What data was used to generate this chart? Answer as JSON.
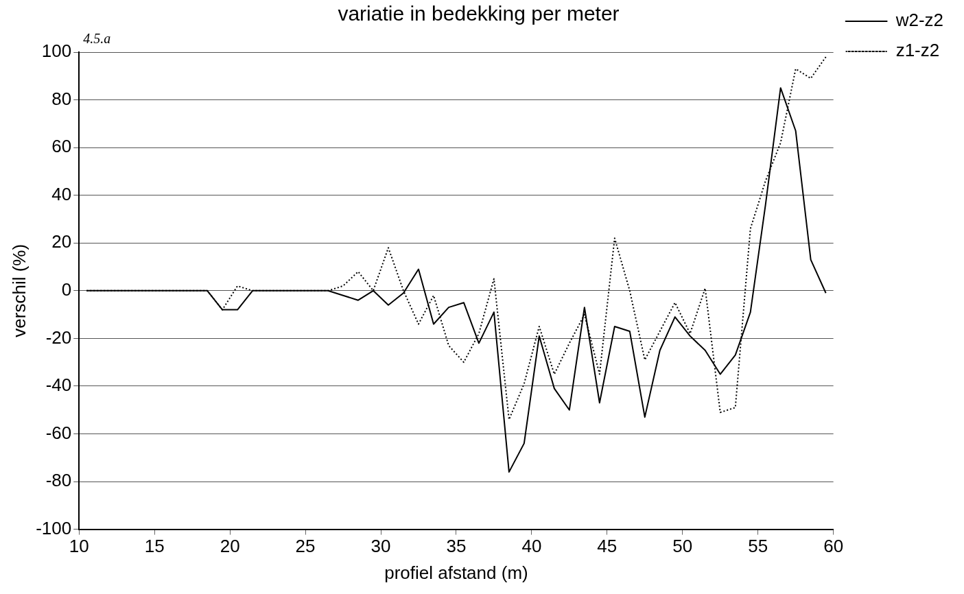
{
  "chart_data": {
    "type": "line",
    "title": "variatie in bedekking per meter",
    "xlabel": "profiel afstand (m)",
    "ylabel": "verschil (%)",
    "annotations": [
      "4.5.a"
    ],
    "x": [
      10.5,
      11.5,
      12.5,
      13.5,
      14.5,
      15.5,
      16.5,
      17.5,
      18.5,
      19.5,
      20.5,
      21.5,
      22.5,
      23.5,
      24.5,
      25.5,
      26.5,
      27.5,
      28.5,
      29.5,
      30.5,
      31.5,
      32.5,
      33.5,
      34.5,
      35.5,
      36.5,
      37.5,
      38.5,
      39.5,
      40.5,
      41.5,
      42.5,
      43.5,
      44.5,
      45.5,
      46.5,
      47.5,
      48.5,
      49.5,
      50.5,
      51.5,
      52.5,
      53.5,
      54.5,
      55.5,
      56.5,
      57.5,
      58.5,
      59.5
    ],
    "series": [
      {
        "name": "w2-z2",
        "color": "#000000",
        "line_style": "solid",
        "values": [
          0,
          0,
          0,
          0,
          0,
          0,
          0,
          0,
          0,
          -8,
          -8,
          0,
          0,
          0,
          0,
          0,
          0,
          -2,
          -4,
          0,
          -6,
          -1,
          9,
          -14,
          -7,
          -5,
          -22,
          -9,
          -76,
          -64,
          -19,
          -41,
          -50,
          -7,
          -47,
          -15,
          -17,
          -53,
          -25,
          -11,
          -19,
          -25,
          -35,
          -27,
          -9,
          36,
          85,
          67,
          13,
          -1
        ]
      },
      {
        "name": "z1-z2",
        "color": "#000000",
        "line_style": "dotted",
        "values": [
          0,
          0,
          0,
          0,
          0,
          0,
          0,
          0,
          0,
          -8,
          2,
          0,
          0,
          0,
          0,
          0,
          0,
          2,
          8,
          0,
          18,
          0,
          -14,
          -2,
          -23,
          -30,
          -18,
          5,
          -54,
          -39,
          -15,
          -35,
          -22,
          -10,
          -35,
          22,
          0,
          -29,
          -17,
          -5,
          -18,
          1,
          -51,
          -49,
          26,
          46,
          62,
          93,
          89,
          98
        ]
      }
    ],
    "xlim": [
      10,
      60
    ],
    "xticks": [
      10,
      15,
      20,
      25,
      30,
      35,
      40,
      45,
      50,
      55,
      60
    ],
    "ylim": [
      -100,
      100
    ],
    "yticks": [
      -100,
      -80,
      -60,
      -40,
      -20,
      0,
      20,
      40,
      60,
      80,
      100
    ],
    "grid": "y",
    "legend": "top right",
    "marker": "none"
  }
}
